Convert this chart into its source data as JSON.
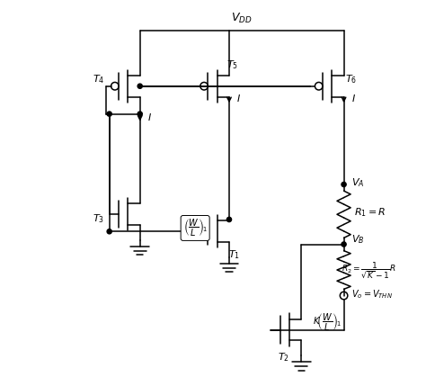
{
  "bg_color": "#ffffff",
  "line_color": "#000000",
  "fig_width": 4.74,
  "fig_height": 4.29,
  "dpi": 100,
  "xlim": [
    0,
    10
  ],
  "ylim": [
    0,
    9
  ]
}
